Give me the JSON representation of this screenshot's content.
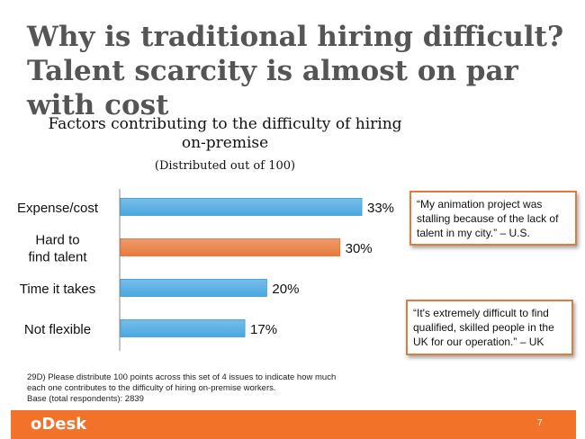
{
  "slide": {
    "title": "Why is traditional hiring difficult? Talent scarcity is almost on par with cost",
    "page_number": "7",
    "logo": "oDesk"
  },
  "quotes": [
    "“My animation project was stalling because of the lack of talent in my city.” – U.S.",
    "“It's extremely difficult to find qualified, skilled people in the UK for our operation.”  – UK"
  ],
  "footnote": {
    "line1": "29D) Please distribute 100 points across this set of 4 issues to indicate how much",
    "line2": "each one contributes to the difficulty of hiring on-premise workers.",
    "line3": "Base (total respondents): 2839"
  },
  "chart_data": {
    "type": "bar",
    "orientation": "horizontal",
    "title": "Factors contributing to the difficulty of hiring on-premise",
    "subtitle": "(Distributed out of 100)",
    "categories": [
      "Expense/cost",
      "Hard to find talent",
      "Time it takes",
      "Not flexible"
    ],
    "values": [
      33,
      30,
      20,
      17
    ],
    "value_labels": [
      "33%",
      "30%",
      "20%",
      "17%"
    ],
    "colors": [
      "#4aa8e0",
      "#e87a3c",
      "#4aa8e0",
      "#4aa8e0"
    ],
    "xlim": [
      0,
      33
    ],
    "grid": false
  }
}
